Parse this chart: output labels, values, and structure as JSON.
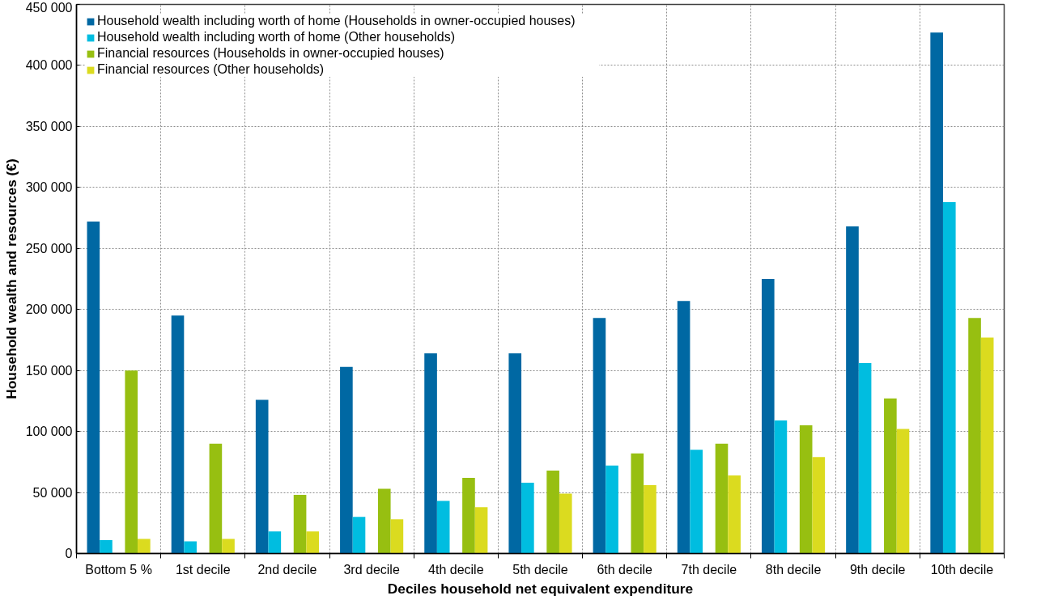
{
  "chart_data": {
    "type": "bar",
    "xlabel": "Deciles household net equivalent expenditure",
    "ylabel": "Household wealth and resources (€)",
    "categories": [
      "Bottom 5 %",
      "1st decile",
      "2nd decile",
      "3rd decile",
      "4th decile",
      "5th decile",
      "6th decile",
      "7th decile",
      "8th decile",
      "9th decile",
      "10th decile"
    ],
    "series": [
      {
        "name": "Household wealth including worth of home (Households in owner-occupied houses)",
        "color": "#0068a3",
        "values": [
          272000,
          195000,
          126000,
          153000,
          164000,
          164000,
          193000,
          207000,
          225000,
          268000,
          427000
        ]
      },
      {
        "name": "Household wealth including worth of home (Other households)",
        "color": "#00bde0",
        "values": [
          11000,
          10000,
          18000,
          30000,
          43000,
          58000,
          72000,
          85000,
          109000,
          156000,
          288000
        ]
      },
      {
        "name": "Financial resources (Households in owner-occupied houses)",
        "color": "#97bf11",
        "values": [
          150000,
          90000,
          48000,
          53000,
          62000,
          68000,
          82000,
          90000,
          105000,
          127000,
          193000
        ]
      },
      {
        "name": "Financial resources (Other households)",
        "color": "#dbdb1f",
        "values": [
          12000,
          12000,
          18000,
          28000,
          38000,
          49000,
          56000,
          64000,
          79000,
          102000,
          177000
        ]
      }
    ],
    "ylim": [
      0,
      450000
    ],
    "yticks": [
      0,
      {
        "value": 50000,
        "label": "50 000"
      },
      {
        "value": 100000,
        "label": "100 000"
      },
      {
        "value": 150000,
        "label": "150 000"
      },
      {
        "value": 200000,
        "label": "200 000"
      },
      {
        "value": 250000,
        "label": "250 000"
      },
      {
        "value": 300000,
        "label": "300 000"
      },
      {
        "value": 350000,
        "label": "350 000"
      },
      {
        "value": 400000,
        "label": "400 000"
      },
      {
        "value": 450000,
        "label": "450 000"
      }
    ],
    "grid": true,
    "legend": "top left"
  }
}
